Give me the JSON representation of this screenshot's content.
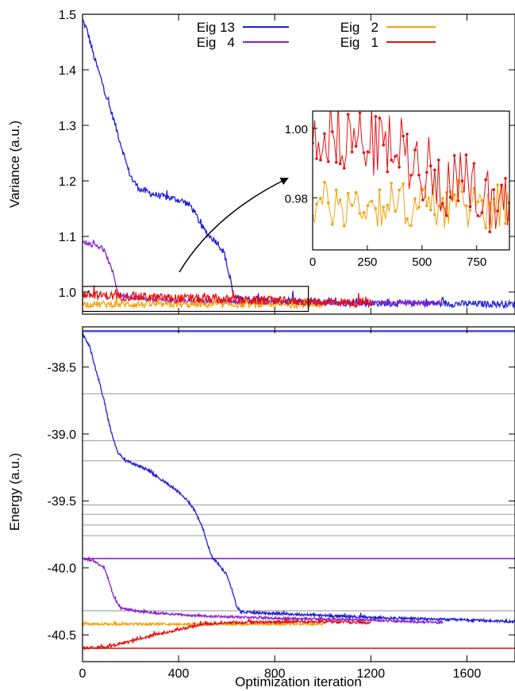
{
  "colors": {
    "eig13": "#1f1fd8",
    "eig4": "#8b1fd0",
    "eig2": "#f5a20a",
    "eig1": "#e81010",
    "reference": "#a9a9a9",
    "frame": "#000000"
  },
  "chart_data": [
    {
      "type": "line",
      "panel": "top",
      "ylabel": "Variance (a.u.)",
      "xlim": [
        0,
        1800
      ],
      "ylim": [
        0.96,
        1.5
      ],
      "y_ticks": [
        "1.0",
        "1.1",
        "1.2",
        "1.3",
        "1.4",
        "1.5"
      ],
      "legend": {
        "placement": "top",
        "entries": [
          {
            "label": "Eig 13",
            "color_key": "eig13"
          },
          {
            "label": "Eig   4",
            "color_key": "eig4"
          },
          {
            "label": "Eig   2",
            "color_key": "eig2"
          },
          {
            "label": "Eig   1",
            "color_key": "eig1"
          }
        ]
      },
      "series": [
        {
          "name": "Eig 13",
          "color_key": "eig13",
          "noise": 0.006,
          "points": [
            [
              0,
              1.49
            ],
            [
              20,
              1.47
            ],
            [
              50,
              1.42
            ],
            [
              80,
              1.38
            ],
            [
              100,
              1.35
            ],
            [
              130,
              1.31
            ],
            [
              150,
              1.28
            ],
            [
              170,
              1.25
            ],
            [
              190,
              1.22
            ],
            [
              210,
              1.2
            ],
            [
              240,
              1.185
            ],
            [
              280,
              1.178
            ],
            [
              330,
              1.172
            ],
            [
              380,
              1.168
            ],
            [
              420,
              1.163
            ],
            [
              450,
              1.155
            ],
            [
              470,
              1.14
            ],
            [
              500,
              1.115
            ],
            [
              530,
              1.1
            ],
            [
              560,
              1.09
            ],
            [
              590,
              1.07
            ],
            [
              610,
              1.03
            ],
            [
              630,
              0.99
            ],
            [
              700,
              0.985
            ],
            [
              900,
              0.982
            ],
            [
              1200,
              0.98
            ],
            [
              1500,
              0.979
            ],
            [
              1800,
              0.978
            ]
          ]
        },
        {
          "name": "Eig   4",
          "color_key": "eig4",
          "noise": 0.004,
          "points": [
            [
              0,
              1.09
            ],
            [
              40,
              1.085
            ],
            [
              80,
              1.08
            ],
            [
              100,
              1.065
            ],
            [
              130,
              1.03
            ],
            [
              150,
              0.995
            ],
            [
              300,
              0.985
            ],
            [
              700,
              0.982
            ],
            [
              1200,
              0.98
            ],
            [
              1500,
              0.98
            ]
          ]
        },
        {
          "name": "Eig   2",
          "color_key": "eig2",
          "noise": 0.006,
          "points": [
            [
              0,
              0.978
            ],
            [
              600,
              0.977
            ],
            [
              1000,
              0.977
            ]
          ]
        },
        {
          "name": "Eig   1",
          "color_key": "eig1",
          "noise": 0.008,
          "points": [
            [
              0,
              0.995
            ],
            [
              300,
              0.99
            ],
            [
              700,
              0.985
            ],
            [
              1200,
              0.98
            ]
          ]
        }
      ],
      "highlight_box": {
        "x": [
          0,
          940
        ],
        "y": [
          0.965,
          1.01
        ]
      },
      "inset": {
        "xlim": [
          0,
          900
        ],
        "ylim": [
          0.965,
          1.005
        ],
        "x_ticks": [
          "0",
          "250",
          "500",
          "750"
        ],
        "y_ticks": [
          "0.98",
          "1.00"
        ],
        "series": [
          {
            "name": "Eig   1",
            "color_key": "eig1",
            "noise": 0.01,
            "points": [
              [
                0,
                1.0
              ],
              [
                200,
                0.997
              ],
              [
                400,
                0.994
              ],
              [
                600,
                0.985
              ],
              [
                900,
                0.978
              ]
            ]
          },
          {
            "name": "Eig   2",
            "color_key": "eig2",
            "noise": 0.007,
            "points": [
              [
                0,
                0.978
              ],
              [
                900,
                0.978
              ]
            ]
          }
        ]
      }
    },
    {
      "type": "line",
      "panel": "bottom",
      "xlabel": "Optimization iteration",
      "ylabel": "Energy (a.u.)",
      "xlim": [
        0,
        1800
      ],
      "ylim": [
        -40.7,
        -38.2
      ],
      "x_ticks": [
        "0",
        "400",
        "800",
        "1200",
        "1600"
      ],
      "y_ticks": [
        "-38.5",
        "-39.0",
        "-39.5",
        "-40.0",
        "-40.5"
      ],
      "reference_lines": [
        {
          "y": -38.23,
          "color_key": "eig13"
        },
        {
          "y": -38.24,
          "color_key": "reference"
        },
        {
          "y": -38.7,
          "color_key": "reference"
        },
        {
          "y": -39.05,
          "color_key": "reference"
        },
        {
          "y": -39.2,
          "color_key": "reference"
        },
        {
          "y": -39.53,
          "color_key": "reference"
        },
        {
          "y": -39.6,
          "color_key": "reference"
        },
        {
          "y": -39.68,
          "color_key": "reference"
        },
        {
          "y": -39.76,
          "color_key": "reference"
        },
        {
          "y": -39.93,
          "color_key": "eig4"
        },
        {
          "y": -40.32,
          "color_key": "reference"
        },
        {
          "y": -40.6,
          "color_key": "eig1"
        }
      ],
      "series": [
        {
          "name": "Eig 13",
          "color_key": "eig13",
          "noise": 0.01,
          "points": [
            [
              0,
              -38.25
            ],
            [
              30,
              -38.35
            ],
            [
              60,
              -38.55
            ],
            [
              90,
              -38.75
            ],
            [
              110,
              -38.92
            ],
            [
              130,
              -39.05
            ],
            [
              150,
              -39.15
            ],
            [
              180,
              -39.2
            ],
            [
              250,
              -39.25
            ],
            [
              320,
              -39.33
            ],
            [
              390,
              -39.42
            ],
            [
              440,
              -39.5
            ],
            [
              470,
              -39.58
            ],
            [
              500,
              -39.7
            ],
            [
              520,
              -39.82
            ],
            [
              540,
              -39.92
            ],
            [
              560,
              -39.96
            ],
            [
              600,
              -40.05
            ],
            [
              620,
              -40.15
            ],
            [
              640,
              -40.28
            ],
            [
              660,
              -40.33
            ],
            [
              800,
              -40.34
            ],
            [
              1200,
              -40.37
            ],
            [
              1800,
              -40.4
            ]
          ]
        },
        {
          "name": "Eig   4",
          "color_key": "eig4",
          "noise": 0.008,
          "points": [
            [
              0,
              -39.93
            ],
            [
              50,
              -39.95
            ],
            [
              90,
              -40.0
            ],
            [
              110,
              -40.1
            ],
            [
              130,
              -40.22
            ],
            [
              160,
              -40.3
            ],
            [
              250,
              -40.33
            ],
            [
              500,
              -40.36
            ],
            [
              900,
              -40.38
            ],
            [
              1200,
              -40.39
            ],
            [
              1500,
              -40.41
            ]
          ]
        },
        {
          "name": "Eig   2",
          "color_key": "eig2",
          "noise": 0.008,
          "points": [
            [
              0,
              -40.42
            ],
            [
              400,
              -40.42
            ],
            [
              700,
              -40.42
            ],
            [
              1000,
              -40.42
            ]
          ]
        },
        {
          "name": "Eig   1",
          "color_key": "eig1",
          "noise": 0.01,
          "points": [
            [
              0,
              -40.6
            ],
            [
              100,
              -40.59
            ],
            [
              200,
              -40.55
            ],
            [
              300,
              -40.5
            ],
            [
              400,
              -40.46
            ],
            [
              500,
              -40.42
            ],
            [
              600,
              -40.41
            ],
            [
              900,
              -40.4
            ],
            [
              1200,
              -40.41
            ]
          ]
        }
      ]
    }
  ]
}
